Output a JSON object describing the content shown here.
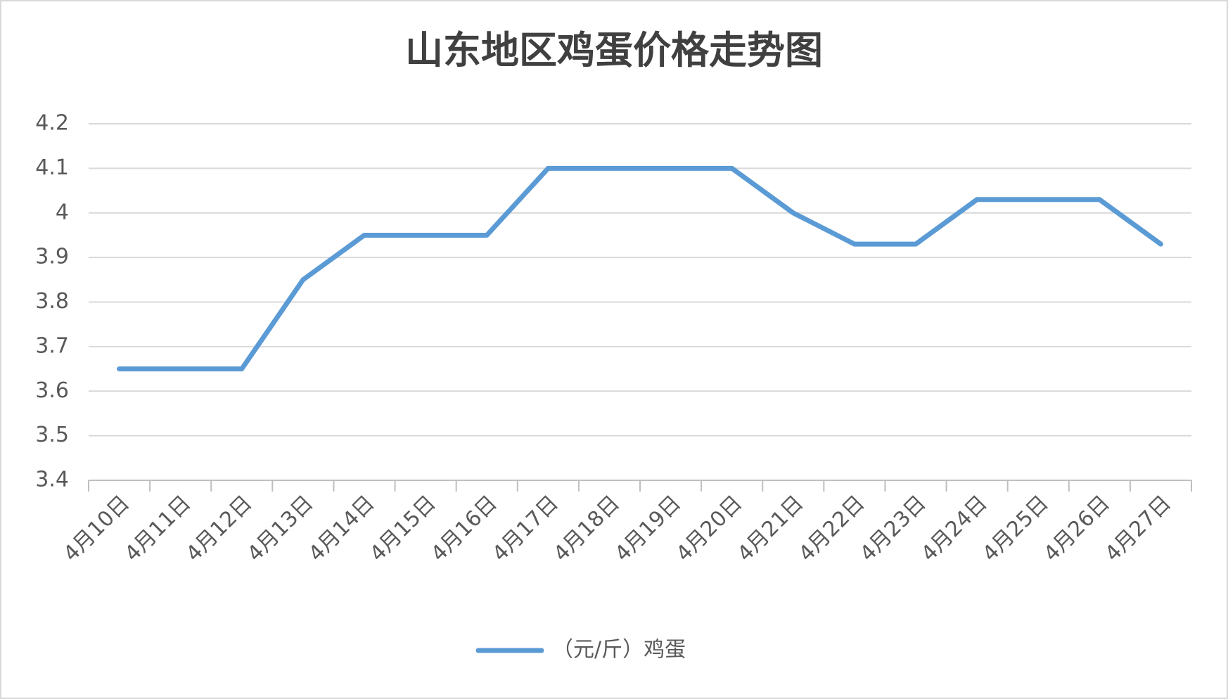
{
  "chart_data": {
    "type": "line",
    "title": "山东地区鸡蛋价格走势图",
    "categories": [
      "4月10日",
      "4月11日",
      "4月12日",
      "4月13日",
      "4月14日",
      "4月15日",
      "4月16日",
      "4月17日",
      "4月18日",
      "4月19日",
      "4月20日",
      "4月21日",
      "4月22日",
      "4月23日",
      "4月24日",
      "4月25日",
      "4月26日",
      "4月27日"
    ],
    "series": [
      {
        "name": "（元/斤）鸡蛋",
        "color": "#5b9bd5",
        "values": [
          3.65,
          3.65,
          3.65,
          3.85,
          3.95,
          3.95,
          3.95,
          4.1,
          4.1,
          4.1,
          4.1,
          4.0,
          3.93,
          3.93,
          4.03,
          4.03,
          4.03,
          3.93
        ]
      }
    ],
    "ylim": [
      3.4,
      4.2
    ],
    "yticks": [
      3.4,
      3.5,
      3.6,
      3.7,
      3.8,
      3.9,
      4,
      4.1,
      4.2
    ],
    "grid": true,
    "legend": "bottom"
  }
}
